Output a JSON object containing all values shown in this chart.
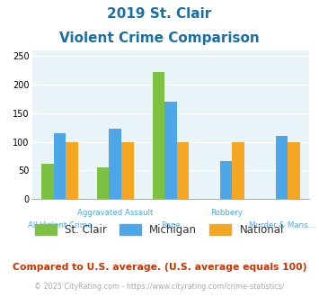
{
  "title_line1": "2019 St. Clair",
  "title_line2": "Violent Crime Comparison",
  "categories": [
    "All Violent Crime",
    "Aggravated Assault",
    "Rape",
    "Robbery",
    "Murder & Mans..."
  ],
  "stclair": [
    62,
    55,
    222,
    0,
    0
  ],
  "michigan": [
    115,
    123,
    171,
    66,
    111
  ],
  "national": [
    100,
    100,
    100,
    100,
    100
  ],
  "color_stclair": "#7dc142",
  "color_michigan": "#4da6e8",
  "color_national": "#f5a623",
  "ylim": [
    0,
    260
  ],
  "yticks": [
    0,
    50,
    100,
    150,
    200,
    250
  ],
  "bg_color": "#e8f4f8",
  "footnote1": "Compared to U.S. average. (U.S. average equals 100)",
  "footnote2": "© 2025 CityRating.com - https://www.cityrating.com/crime-statistics/",
  "title_color": "#1a6fa8",
  "footnote1_color": "#cc3300",
  "footnote2_color": "#aaaaaa",
  "footnote2_link_color": "#4da6e8",
  "xlabel_color": "#4da6e8",
  "bar_width": 0.22
}
